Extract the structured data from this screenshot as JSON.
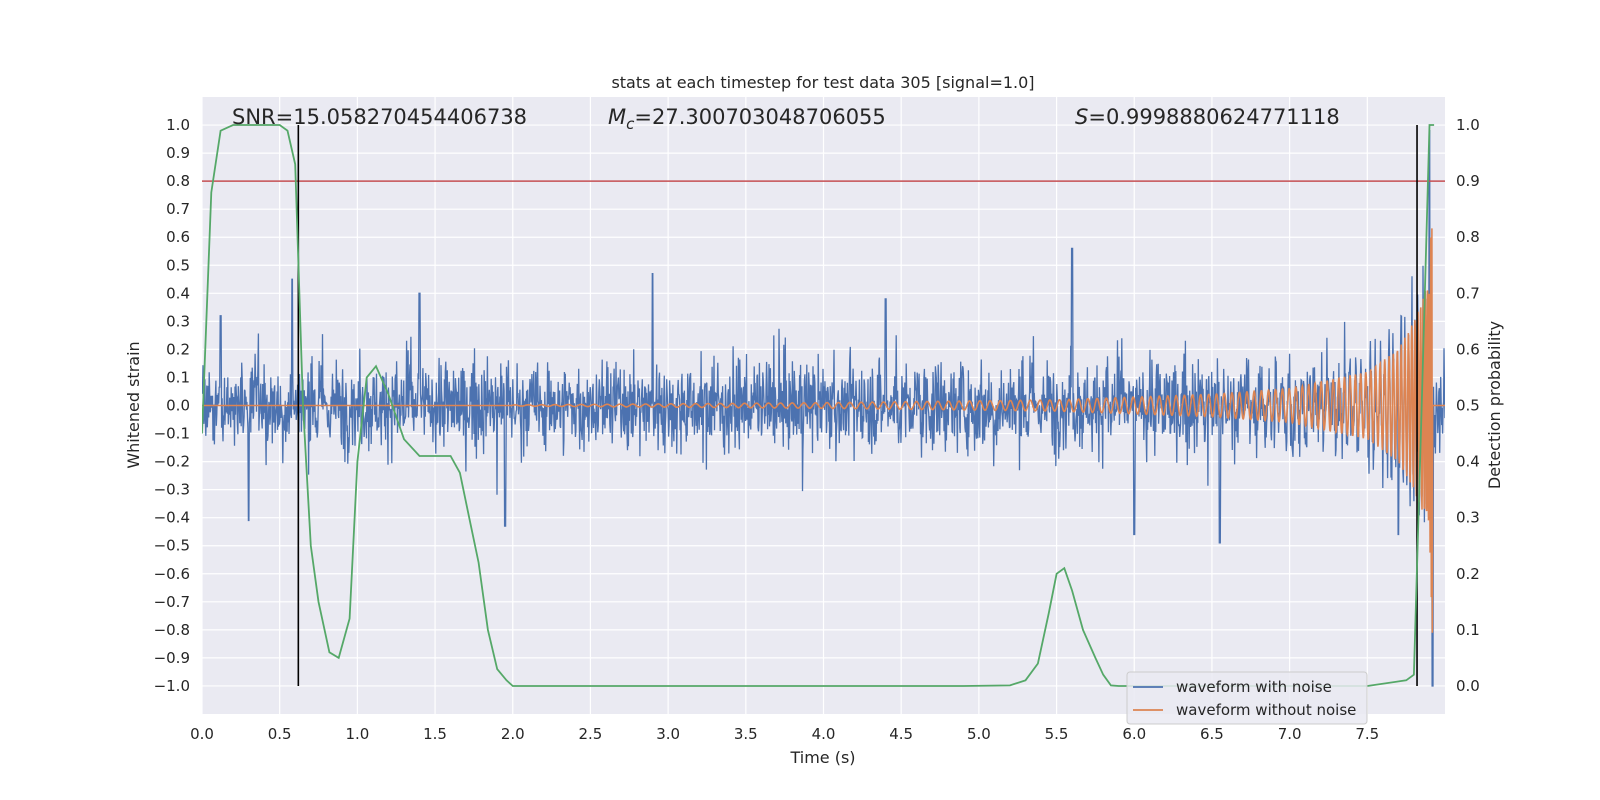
{
  "chart_data": {
    "type": "line",
    "title": "stats at each timestep for test data 305 [signal=1.0]",
    "xlabel": "Time (s)",
    "ylabel": "Whitened strain",
    "y2label": "Detection probability",
    "xlim": [
      0.0,
      8.0
    ],
    "ylim": [
      -1.1,
      1.1
    ],
    "y2lim": [
      -0.05,
      1.05
    ],
    "xticks": [
      0.0,
      0.5,
      1.0,
      1.5,
      2.0,
      2.5,
      3.0,
      3.5,
      4.0,
      4.5,
      5.0,
      5.5,
      6.0,
      6.5,
      7.0,
      7.5
    ],
    "xtick_labels": [
      "0.0",
      "0.5",
      "1.0",
      "1.5",
      "2.0",
      "2.5",
      "3.0",
      "3.5",
      "4.0",
      "4.5",
      "5.0",
      "5.5",
      "6.0",
      "6.5",
      "7.0",
      "7.5"
    ],
    "yticks": [
      -1.0,
      -0.9,
      -0.8,
      -0.7,
      -0.6,
      -0.5,
      -0.4,
      -0.3,
      -0.2,
      -0.1,
      0.0,
      0.1,
      0.2,
      0.3,
      0.4,
      0.5,
      0.6,
      0.7,
      0.8,
      0.9,
      1.0
    ],
    "ytick_labels": [
      "−1.0",
      "−0.9",
      "−0.8",
      "−0.7",
      "−0.6",
      "−0.5",
      "−0.4",
      "−0.3",
      "−0.2",
      "−0.1",
      "0.0",
      "0.1",
      "0.2",
      "0.3",
      "0.4",
      "0.5",
      "0.6",
      "0.7",
      "0.8",
      "0.9",
      "1.0"
    ],
    "y2ticks": [
      0.0,
      0.1,
      0.2,
      0.3,
      0.4,
      0.5,
      0.6,
      0.7,
      0.8,
      0.9,
      1.0
    ],
    "y2tick_labels": [
      "0.0",
      "0.1",
      "0.2",
      "0.3",
      "0.4",
      "0.5",
      "0.6",
      "0.7",
      "0.8",
      "0.9",
      "1.0"
    ],
    "grid": true,
    "legend_position": "lower-right",
    "annotations": {
      "snr": "SNR=15.058270454406738",
      "mc_symbol": "M",
      "mc_sub": "c",
      "mc_value": "=27.300703048706055",
      "s_symbol": "S",
      "s_value": "=0.9998880624771118"
    },
    "threshold": {
      "axis": "right",
      "value": 0.9,
      "color": "#c44e52"
    },
    "vertical_markers": {
      "x": [
        0.62,
        7.82
      ],
      "ymin": -1.0,
      "ymax": 1.0,
      "color": "#000000"
    },
    "series": [
      {
        "name": "waveform with noise",
        "color": "#4c72b0",
        "axis": "left",
        "description_values": {
          "noise_envelope": 0.2,
          "peaks": [
            [
              0.12,
              0.32
            ],
            [
              0.58,
              0.45
            ],
            [
              1.4,
              0.4
            ],
            [
              2.9,
              0.47
            ],
            [
              4.4,
              0.38
            ],
            [
              5.6,
              0.56
            ],
            [
              7.9,
              0.98
            ],
            [
              7.92,
              -1.0
            ]
          ],
          "troughs": [
            [
              0.3,
              -0.41
            ],
            [
              1.95,
              -0.43
            ],
            [
              6.0,
              -0.46
            ],
            [
              6.55,
              -0.49
            ],
            [
              7.7,
              -0.46
            ]
          ]
        }
      },
      {
        "name": "waveform without noise",
        "color": "#dd8452",
        "axis": "left",
        "description_values": {
          "chirp_start": 2.0,
          "merger_time": 7.92,
          "amplitude_points": [
            [
              2.0,
              0.002
            ],
            [
              4.0,
              0.01
            ],
            [
              5.5,
              0.02
            ],
            [
              6.5,
              0.04
            ],
            [
              7.0,
              0.06
            ],
            [
              7.5,
              0.12
            ],
            [
              7.7,
              0.2
            ],
            [
              7.8,
              0.3
            ],
            [
              7.9,
              0.45
            ],
            [
              7.92,
              0.85
            ]
          ]
        }
      },
      {
        "name": "detection probability",
        "color": "#55a868",
        "axis": "right",
        "x": [
          0.0,
          0.06,
          0.12,
          0.2,
          0.3,
          0.4,
          0.5,
          0.55,
          0.6,
          0.65,
          0.7,
          0.75,
          0.82,
          0.88,
          0.95,
          1.0,
          1.06,
          1.12,
          1.2,
          1.3,
          1.4,
          1.5,
          1.6,
          1.66,
          1.72,
          1.78,
          1.84,
          1.9,
          1.96,
          2.0,
          2.5,
          3.0,
          3.5,
          4.0,
          4.5,
          4.9,
          5.2,
          5.3,
          5.38,
          5.45,
          5.5,
          5.55,
          5.6,
          5.67,
          5.75,
          5.8,
          5.85,
          5.9,
          7.0,
          7.5,
          7.75,
          7.8,
          7.85,
          7.88,
          7.9,
          7.93
        ],
        "values": [
          0.45,
          0.88,
          0.99,
          1.0,
          1.0,
          1.0,
          1.0,
          0.99,
          0.93,
          0.5,
          0.25,
          0.15,
          0.06,
          0.05,
          0.12,
          0.4,
          0.55,
          0.57,
          0.52,
          0.44,
          0.41,
          0.41,
          0.41,
          0.38,
          0.3,
          0.22,
          0.1,
          0.03,
          0.01,
          0.0,
          0.0,
          0.0,
          0.0,
          0.0,
          0.0,
          0.0,
          0.001,
          0.01,
          0.04,
          0.13,
          0.2,
          0.21,
          0.17,
          0.1,
          0.05,
          0.02,
          0.001,
          0.0,
          0.0,
          0.0,
          0.01,
          0.02,
          0.5,
          0.8,
          1.0,
          1.0
        ]
      }
    ]
  }
}
